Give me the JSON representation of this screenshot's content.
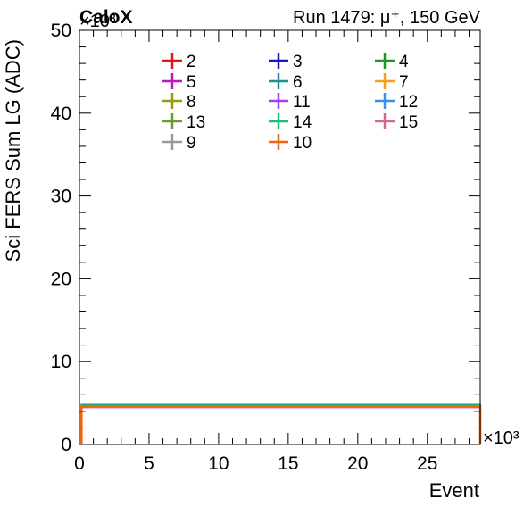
{
  "header": {
    "experiment": "CaloX",
    "run_info": "Run 1479:   μ⁺, 150 GeV"
  },
  "chart_data": {
    "type": "line",
    "xlabel": "Event",
    "ylabel": "Sci FERS Sum LG (ADC)",
    "x_exponent": "×10³",
    "y_exponent": "×10³",
    "xlim": [
      0,
      28.8
    ],
    "ylim": [
      0,
      50
    ],
    "x_ticks": [
      0,
      5,
      10,
      15,
      20,
      25
    ],
    "y_ticks": [
      0,
      10,
      20,
      30,
      40,
      50
    ],
    "x_tick_labels": [
      "0",
      "5",
      "10",
      "15",
      "20",
      "25"
    ],
    "y_tick_labels": [
      "0",
      "10",
      "20",
      "30",
      "40",
      "50"
    ],
    "grid": false,
    "legend_placement": "top, 3 columns",
    "series": [
      {
        "name": "2",
        "color": "#e8141c",
        "x": [
          0.15,
          28.8
        ],
        "values": [
          4.6,
          4.6
        ]
      },
      {
        "name": "3",
        "color": "#1f12b8",
        "x": [
          0.15,
          28.8
        ],
        "values": [
          4.6,
          4.6
        ]
      },
      {
        "name": "4",
        "color": "#189a22",
        "x": [
          0.15,
          28.8
        ],
        "values": [
          4.6,
          4.6
        ]
      },
      {
        "name": "5",
        "color": "#c018c0",
        "x": [
          0.15,
          28.8
        ],
        "values": [
          4.5,
          4.5
        ]
      },
      {
        "name": "6",
        "color": "#1f8f8f",
        "x": [
          0.15,
          28.8
        ],
        "values": [
          4.8,
          4.8
        ]
      },
      {
        "name": "7",
        "color": "#f5a01a",
        "x": [
          0.15,
          28.8
        ],
        "values": [
          4.6,
          4.6
        ]
      },
      {
        "name": "8",
        "color": "#9a9a10",
        "x": [
          0.15,
          28.8
        ],
        "values": [
          4.6,
          4.6
        ]
      },
      {
        "name": "11",
        "color": "#a040f0",
        "x": [
          0.15,
          28.8
        ],
        "values": [
          4.6,
          4.6
        ]
      },
      {
        "name": "12",
        "color": "#3a8ff0",
        "x": [
          0.15,
          28.8
        ],
        "values": [
          4.6,
          4.6
        ]
      },
      {
        "name": "13",
        "color": "#6a9a30",
        "x": [
          0.15,
          28.8
        ],
        "values": [
          4.6,
          4.6
        ]
      },
      {
        "name": "14",
        "color": "#18c07a",
        "x": [
          0.15,
          28.8
        ],
        "values": [
          4.7,
          4.7
        ]
      },
      {
        "name": "15",
        "color": "#d06a90",
        "x": [
          0.15,
          28.8
        ],
        "values": [
          4.5,
          4.5
        ]
      },
      {
        "name": "9",
        "color": "#9a9a9a",
        "x": [
          0.15,
          28.8
        ],
        "values": [
          4.6,
          4.6
        ]
      },
      {
        "name": "10",
        "color": "#f0640a",
        "x": [
          0.15,
          28.8
        ],
        "values": [
          4.6,
          4.6
        ]
      }
    ]
  }
}
